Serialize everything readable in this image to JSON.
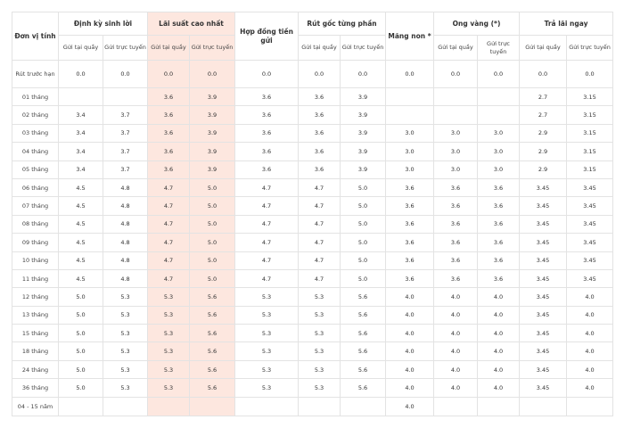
{
  "header": {
    "unit": "Đơn vị tính",
    "groups": [
      {
        "key": "dksl",
        "label": "Định kỳ sinh lời"
      },
      {
        "key": "lscn",
        "label": "Lãi suất cao nhất"
      },
      {
        "key": "hdtg",
        "label": "Hợp đồng tiền gửi"
      },
      {
        "key": "rgtp",
        "label": "Rút gốc từng phần"
      },
      {
        "key": "mn",
        "label": "Măng non *"
      },
      {
        "key": "ov",
        "label": "Ong vàng (*)"
      },
      {
        "key": "tln",
        "label": "Trả lãi ngay"
      }
    ],
    "sub_counter": "Gửi tại quầy",
    "sub_online": "Gửi trực tuyến"
  },
  "rows": [
    {
      "unit": "Rút trước hạn",
      "v": [
        "0.0",
        "0.0",
        "0.0",
        "0.0",
        "0.0",
        "0.0",
        "0.0",
        "0.0",
        "0.0",
        "0.0",
        "0.0",
        "0.0"
      ]
    },
    {
      "unit": "01 tháng",
      "v": [
        "",
        "",
        "3.6",
        "3.9",
        "3.6",
        "3.6",
        "3.9",
        "",
        "",
        "",
        "2.7",
        "3.15"
      ]
    },
    {
      "unit": "02 tháng",
      "v": [
        "3.4",
        "3.7",
        "3.6",
        "3.9",
        "3.6",
        "3.6",
        "3.9",
        "",
        "",
        "",
        "2.7",
        "3.15"
      ]
    },
    {
      "unit": "03 tháng",
      "v": [
        "3.4",
        "3.7",
        "3.6",
        "3.9",
        "3.6",
        "3.6",
        "3.9",
        "3.0",
        "3.0",
        "3.0",
        "2.9",
        "3.15"
      ]
    },
    {
      "unit": "04 tháng",
      "v": [
        "3.4",
        "3.7",
        "3.6",
        "3.9",
        "3.6",
        "3.6",
        "3.9",
        "3.0",
        "3.0",
        "3.0",
        "2.9",
        "3.15"
      ]
    },
    {
      "unit": "05 tháng",
      "v": [
        "3.4",
        "3.7",
        "3.6",
        "3.9",
        "3.6",
        "3.6",
        "3.9",
        "3.0",
        "3.0",
        "3.0",
        "2.9",
        "3.15"
      ]
    },
    {
      "unit": "06 tháng",
      "v": [
        "4.5",
        "4.8",
        "4.7",
        "5.0",
        "4.7",
        "4.7",
        "5.0",
        "3.6",
        "3.6",
        "3.6",
        "3.45",
        "3.45"
      ]
    },
    {
      "unit": "07 tháng",
      "v": [
        "4.5",
        "4.8",
        "4.7",
        "5.0",
        "4.7",
        "4.7",
        "5.0",
        "3.6",
        "3.6",
        "3.6",
        "3.45",
        "3.45"
      ]
    },
    {
      "unit": "08 tháng",
      "v": [
        "4.5",
        "4.8",
        "4.7",
        "5.0",
        "4.7",
        "4.7",
        "5.0",
        "3.6",
        "3.6",
        "3.6",
        "3.45",
        "3.45"
      ]
    },
    {
      "unit": "09 tháng",
      "v": [
        "4.5",
        "4.8",
        "4.7",
        "5.0",
        "4.7",
        "4.7",
        "5.0",
        "3.6",
        "3.6",
        "3.6",
        "3.45",
        "3.45"
      ]
    },
    {
      "unit": "10 tháng",
      "v": [
        "4.5",
        "4.8",
        "4.7",
        "5.0",
        "4.7",
        "4.7",
        "5.0",
        "3.6",
        "3.6",
        "3.6",
        "3.45",
        "3.45"
      ]
    },
    {
      "unit": "11 tháng",
      "v": [
        "4.5",
        "4.8",
        "4.7",
        "5.0",
        "4.7",
        "4.7",
        "5.0",
        "3.6",
        "3.6",
        "3.6",
        "3.45",
        "3.45"
      ]
    },
    {
      "unit": "12 tháng",
      "v": [
        "5.0",
        "5.3",
        "5.3",
        "5.6",
        "5.3",
        "5.3",
        "5.6",
        "4.0",
        "4.0",
        "4.0",
        "3.45",
        "4.0"
      ]
    },
    {
      "unit": "13 tháng",
      "v": [
        "5.0",
        "5.3",
        "5.3",
        "5.6",
        "5.3",
        "5.3",
        "5.6",
        "4.0",
        "4.0",
        "4.0",
        "3.45",
        "4.0"
      ]
    },
    {
      "unit": "15 tháng",
      "v": [
        "5.0",
        "5.3",
        "5.3",
        "5.6",
        "5.3",
        "5.3",
        "5.6",
        "4.0",
        "4.0",
        "4.0",
        "3.45",
        "4.0"
      ]
    },
    {
      "unit": "18 tháng",
      "v": [
        "5.0",
        "5.3",
        "5.3",
        "5.6",
        "5.3",
        "5.3",
        "5.6",
        "4.0",
        "4.0",
        "4.0",
        "3.45",
        "4.0"
      ]
    },
    {
      "unit": "24 tháng",
      "v": [
        "5.0",
        "5.3",
        "5.3",
        "5.6",
        "5.3",
        "5.3",
        "5.6",
        "4.0",
        "4.0",
        "4.0",
        "3.45",
        "4.0"
      ]
    },
    {
      "unit": "36 tháng",
      "v": [
        "5.0",
        "5.3",
        "5.3",
        "5.6",
        "5.3",
        "5.3",
        "5.6",
        "4.0",
        "4.0",
        "4.0",
        "3.45",
        "4.0"
      ]
    },
    {
      "unit": "04 - 15 năm",
      "v": [
        "",
        "",
        "",
        "",
        "",
        "",
        "",
        "4.0",
        "",
        "",
        "",
        ""
      ]
    }
  ],
  "style": {
    "highlight": "#fde7df",
    "grid": "#e3e3e3"
  }
}
